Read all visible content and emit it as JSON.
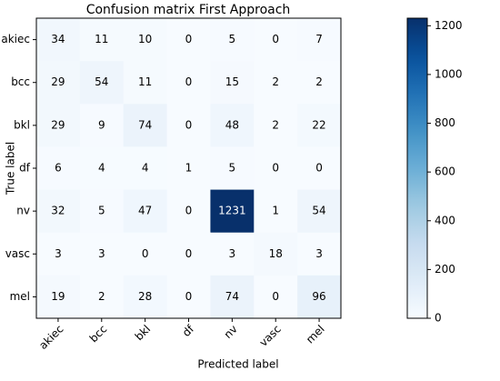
{
  "chart_data": {
    "type": "heatmap",
    "title": "Confusion matrix First Approach",
    "x_label": "Predicted label",
    "y_label": "True label",
    "x_categories": [
      "akiec",
      "bcc",
      "bkl",
      "df",
      "nv",
      "vasc",
      "mel"
    ],
    "y_categories": [
      "akiec",
      "bcc",
      "bkl",
      "df",
      "nv",
      "vasc",
      "mel"
    ],
    "values": [
      [
        34,
        11,
        10,
        0,
        5,
        0,
        7
      ],
      [
        29,
        54,
        11,
        0,
        15,
        2,
        2
      ],
      [
        29,
        9,
        74,
        0,
        48,
        2,
        22
      ],
      [
        6,
        4,
        4,
        1,
        5,
        0,
        0
      ],
      [
        32,
        5,
        47,
        0,
        1231,
        1,
        54
      ],
      [
        3,
        3,
        0,
        0,
        3,
        18,
        3
      ],
      [
        19,
        2,
        28,
        0,
        74,
        0,
        96
      ]
    ],
    "colormap": "Blues",
    "clim": [
      0,
      1231
    ],
    "colorbar_ticks": [
      0,
      200,
      400,
      600,
      800,
      1000,
      1200
    ]
  }
}
